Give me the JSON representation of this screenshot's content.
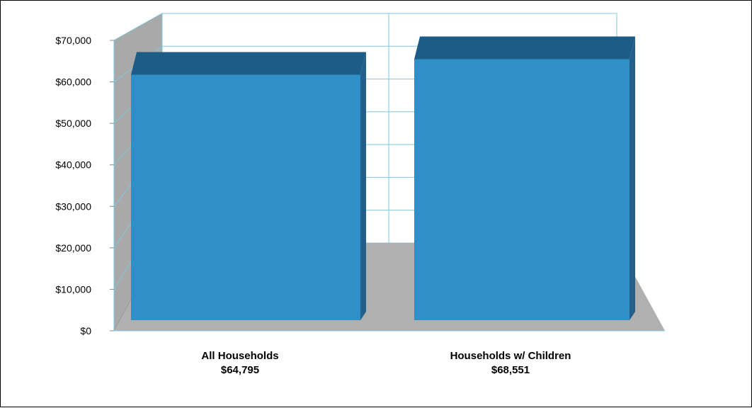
{
  "chart_data": {
    "type": "bar",
    "categories": [
      "All Households",
      "Households w/ Children"
    ],
    "category_value_labels": [
      "$64,795",
      "$68,551"
    ],
    "values": [
      64795,
      68551
    ],
    "y_ticks": [
      "$0",
      "$10,000",
      "$20,000",
      "$30,000",
      "$40,000",
      "$50,000",
      "$60,000",
      "$70,000"
    ],
    "ylim": [
      0,
      70000
    ],
    "grid": true,
    "style": "3d-column",
    "colors": {
      "bar_front": "#318fc8",
      "bar_top": "#1d5c87",
      "bar_side": "#245f8c",
      "back_wall": "#a9a9a9",
      "floor": "#b0b0b0",
      "gridline": "#7ec8dc"
    }
  }
}
